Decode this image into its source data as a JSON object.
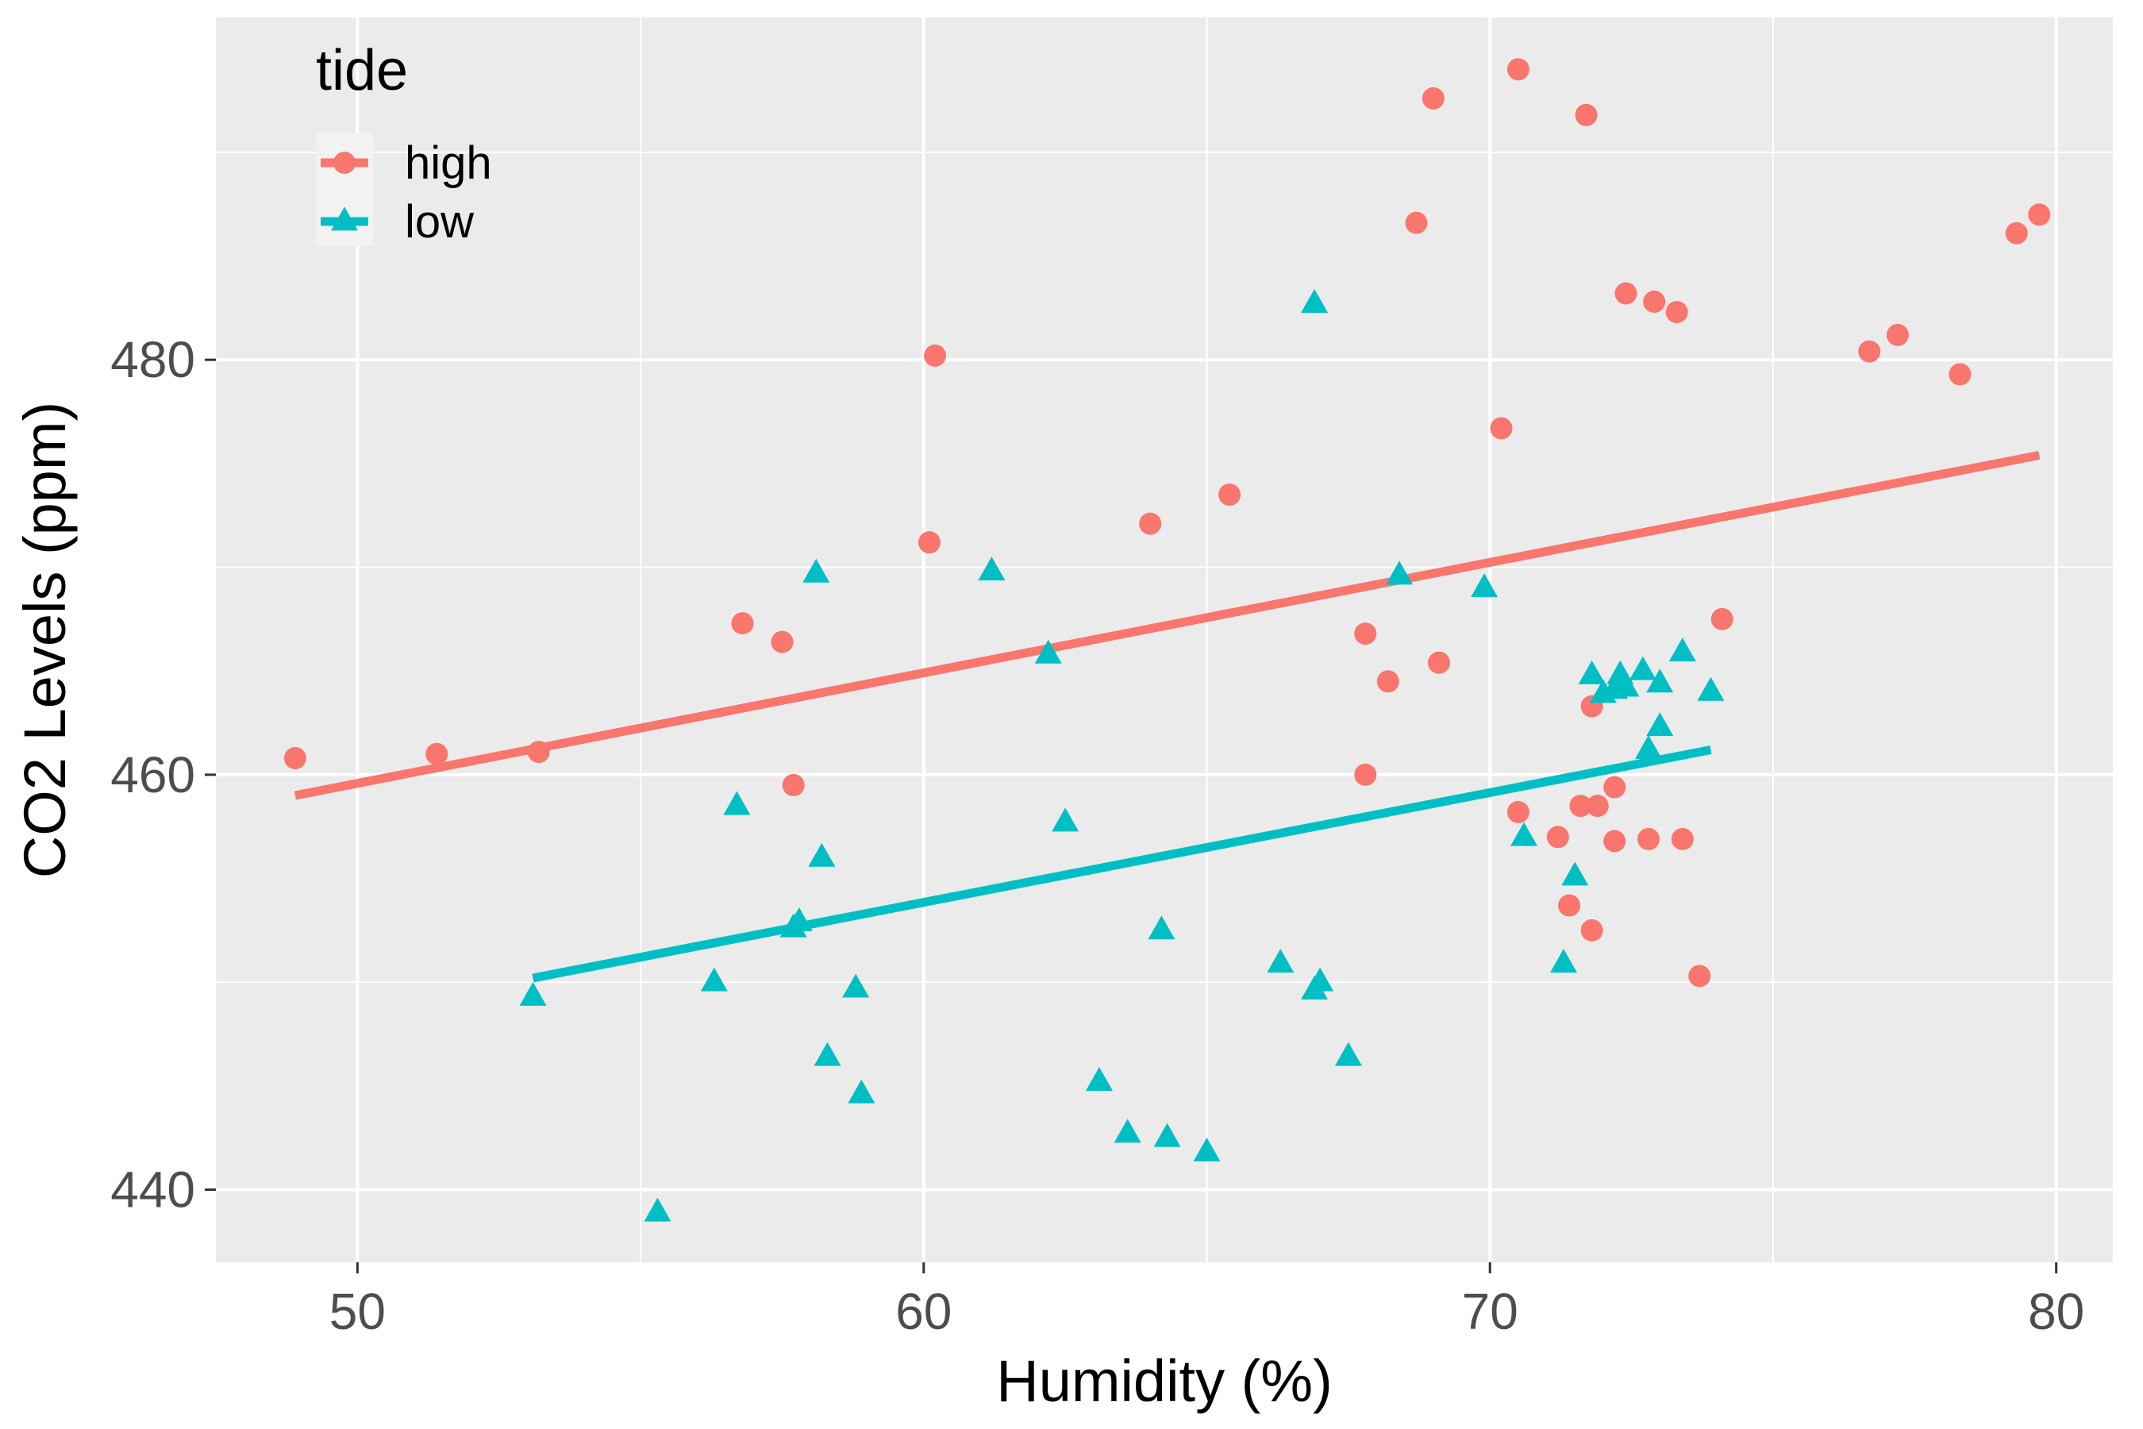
{
  "chart_data": {
    "type": "scatter",
    "xlabel": "Humidity (%)",
    "ylabel": "CO2 Levels (ppm)",
    "xlim": [
      47.5,
      81
    ],
    "ylim": [
      436.5,
      496.5
    ],
    "x_ticks": [
      50,
      60,
      70,
      80
    ],
    "y_ticks": [
      440,
      460,
      480
    ],
    "grid": true,
    "legend": {
      "title": "tide",
      "placement": "top-left",
      "entries": [
        {
          "label": "high",
          "color": "#F8766D",
          "marker": "circle"
        },
        {
          "label": "low",
          "color": "#00BFC4",
          "marker": "triangle"
        }
      ]
    },
    "colors": {
      "panel_background": "#EBEBEB",
      "grid": "#FFFFFF",
      "high": "#F8766D",
      "low": "#00BFC4"
    },
    "series": [
      {
        "name": "high",
        "marker": "circle",
        "color": "#F8766D",
        "points": [
          [
            48.9,
            460.8
          ],
          [
            51.4,
            461.0
          ],
          [
            53.2,
            461.1
          ],
          [
            56.8,
            467.3
          ],
          [
            57.5,
            466.4
          ],
          [
            57.7,
            459.5
          ],
          [
            60.1,
            471.2
          ],
          [
            60.2,
            480.2
          ],
          [
            64.0,
            472.1
          ],
          [
            65.4,
            473.5
          ],
          [
            67.8,
            466.8
          ],
          [
            67.8,
            460.0
          ],
          [
            68.2,
            464.5
          ],
          [
            68.7,
            486.6
          ],
          [
            69.0,
            492.6
          ],
          [
            69.1,
            465.4
          ],
          [
            70.2,
            476.7
          ],
          [
            70.5,
            494.0
          ],
          [
            70.5,
            458.2
          ],
          [
            71.2,
            457.0
          ],
          [
            71.4,
            453.7
          ],
          [
            71.6,
            458.5
          ],
          [
            71.7,
            491.8
          ],
          [
            71.8,
            452.5
          ],
          [
            71.8,
            463.3
          ],
          [
            71.9,
            458.5
          ],
          [
            72.2,
            459.4
          ],
          [
            72.2,
            456.8
          ],
          [
            72.4,
            483.2
          ],
          [
            72.8,
            456.9
          ],
          [
            72.9,
            482.8
          ],
          [
            73.3,
            482.3
          ],
          [
            73.4,
            456.9
          ],
          [
            73.7,
            450.3
          ],
          [
            74.1,
            467.5
          ],
          [
            76.7,
            480.4
          ],
          [
            77.2,
            481.2
          ],
          [
            78.3,
            479.3
          ],
          [
            79.3,
            486.1
          ],
          [
            79.7,
            487.0
          ]
        ]
      },
      {
        "name": "low",
        "marker": "triangle",
        "color": "#00BFC4",
        "points": [
          [
            53.1,
            449.3
          ],
          [
            55.3,
            438.9
          ],
          [
            56.3,
            450.0
          ],
          [
            56.7,
            458.5
          ],
          [
            57.7,
            452.6
          ],
          [
            57.8,
            452.9
          ],
          [
            58.1,
            469.7
          ],
          [
            58.2,
            456.0
          ],
          [
            58.3,
            446.4
          ],
          [
            58.8,
            449.7
          ],
          [
            58.9,
            444.6
          ],
          [
            61.2,
            469.8
          ],
          [
            62.2,
            465.8
          ],
          [
            62.5,
            457.7
          ],
          [
            63.1,
            445.2
          ],
          [
            63.6,
            442.7
          ],
          [
            64.2,
            452.5
          ],
          [
            64.3,
            442.5
          ],
          [
            65.0,
            441.8
          ],
          [
            66.3,
            450.9
          ],
          [
            66.9,
            449.6
          ],
          [
            66.9,
            482.7
          ],
          [
            67.0,
            450.0
          ],
          [
            67.5,
            446.4
          ],
          [
            68.4,
            469.6
          ],
          [
            69.9,
            469.0
          ],
          [
            70.6,
            457.0
          ],
          [
            71.3,
            450.9
          ],
          [
            71.5,
            455.1
          ],
          [
            71.8,
            464.8
          ],
          [
            72.0,
            463.9
          ],
          [
            72.2,
            464.1
          ],
          [
            72.3,
            464.8
          ],
          [
            72.4,
            464.2
          ],
          [
            72.7,
            465.0
          ],
          [
            72.8,
            461.2
          ],
          [
            73.0,
            464.4
          ],
          [
            73.0,
            462.3
          ],
          [
            73.4,
            465.9
          ],
          [
            73.9,
            464.0
          ]
        ]
      }
    ],
    "trend_lines": [
      {
        "series": "high",
        "x": [
          48.9,
          79.7
        ],
        "y": [
          459.0,
          475.4
        ]
      },
      {
        "series": "low",
        "x": [
          53.1,
          73.9
        ],
        "y": [
          450.2,
          461.2
        ]
      }
    ]
  }
}
